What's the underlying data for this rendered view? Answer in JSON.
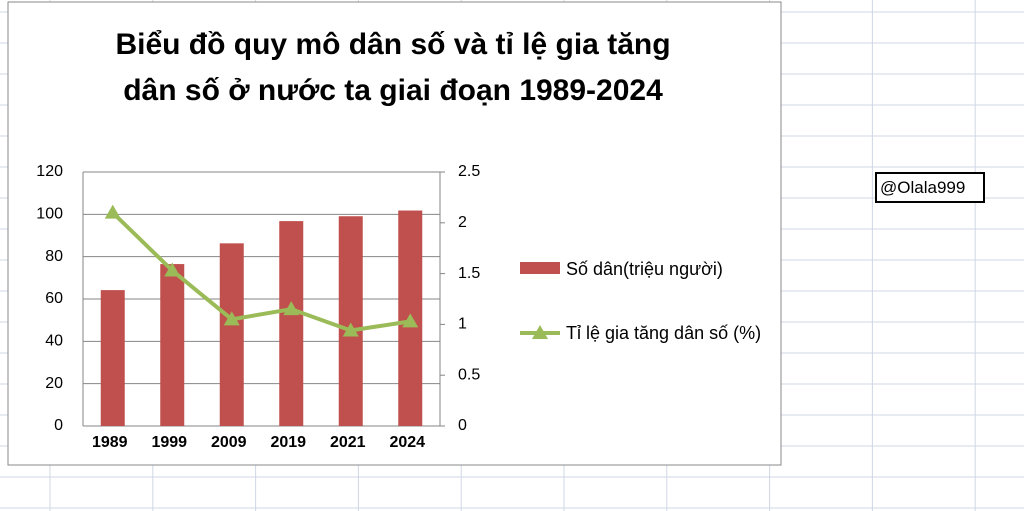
{
  "chart_data": {
    "type": "bar-line",
    "title": "Biểu đồ quy mô dân số và tỉ lệ gia tăng dân số ở nước ta giai đoạn 1989-2024",
    "categories": [
      "1989",
      "1999",
      "2009",
      "2019",
      "2021",
      "2024"
    ],
    "series": [
      {
        "name": "Số dân(triệu người)",
        "type": "bar",
        "color": "#c0504d",
        "values": [
          64.2,
          76.5,
          86.3,
          96.8,
          99.1,
          101.8
        ]
      },
      {
        "name": "Tỉ lệ gia tăng dân số (%)",
        "type": "line",
        "axis": "y2",
        "color": "#9bbb59",
        "values": [
          2.1,
          1.53,
          1.05,
          1.15,
          0.94,
          1.03
        ]
      }
    ],
    "ylim": [
      0,
      120
    ],
    "yticks": [
      0,
      20,
      40,
      60,
      80,
      100,
      120
    ],
    "y2lim": [
      0,
      2.5
    ],
    "y2ticks": [
      0,
      0.5,
      1,
      1.5,
      2,
      2.5
    ],
    "grid": true,
    "legend": "right"
  },
  "watermark": "@Olala999"
}
